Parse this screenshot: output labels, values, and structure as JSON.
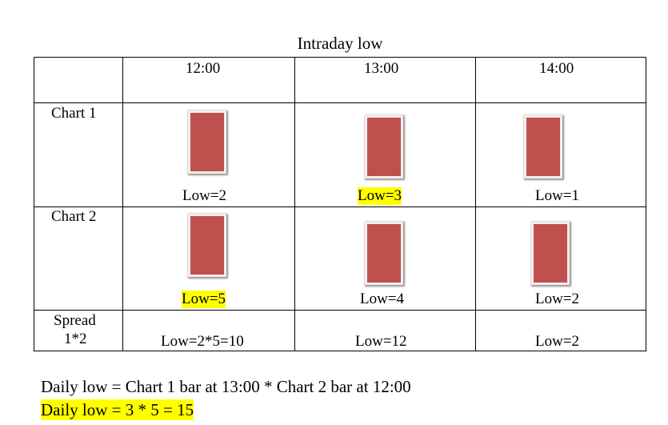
{
  "title": "Intraday low",
  "columns": [
    "12:00",
    "13:00",
    "14:00"
  ],
  "rows": [
    {
      "label": "Chart 1",
      "cells": [
        {
          "text": "Low=2",
          "highlight": false
        },
        {
          "text": "Low=3",
          "highlight": true
        },
        {
          "text": "Low=1",
          "highlight": false
        }
      ]
    },
    {
      "label": "Chart 2",
      "cells": [
        {
          "text": "Low=5",
          "highlight": true
        },
        {
          "text": "Low=4",
          "highlight": false
        },
        {
          "text": "Low=2",
          "highlight": false
        }
      ]
    },
    {
      "label_line1": "Spread",
      "label_line2": "1*2",
      "cells": [
        {
          "text": "Low=2*5=10",
          "highlight": false
        },
        {
          "text": "Low=12",
          "highlight": false
        },
        {
          "text": "Low=2",
          "highlight": false
        }
      ]
    }
  ],
  "formula": {
    "line1": "Daily low = Chart 1 bar at 13:00 * Chart 2 bar at 12:00",
    "line2": "Daily low = 3 * 5 = 15"
  },
  "colors": {
    "bar": "#c0504d",
    "highlight": "#ffff00"
  }
}
